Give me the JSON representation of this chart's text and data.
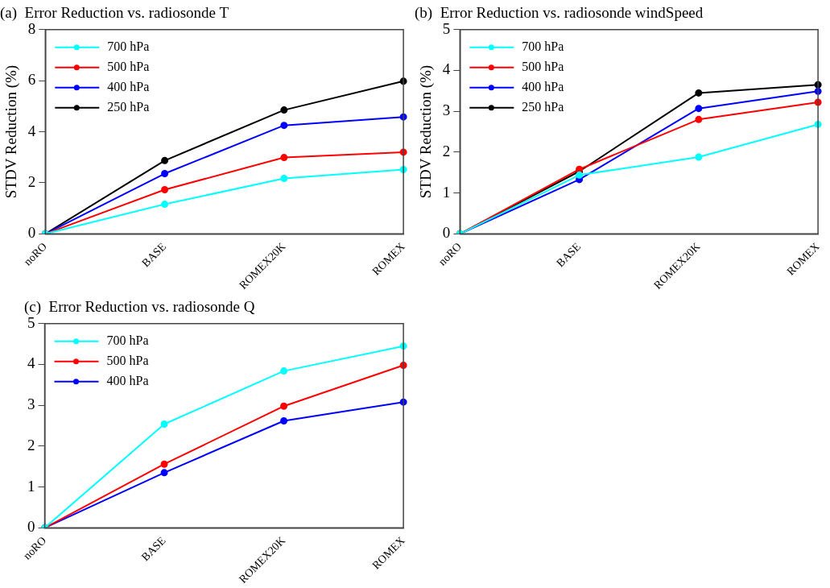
{
  "chart_data": [
    {
      "type": "line",
      "title": "(a)  Error Reduction vs. radiosonde T",
      "ylabel": "STDV Reduction (%)",
      "categories": [
        "noRO",
        "BASE",
        "ROMEX20K",
        "ROMEX"
      ],
      "ylim": [
        0,
        8
      ],
      "yticks": [
        0,
        2,
        4,
        6,
        8
      ],
      "legend": "top left",
      "marker": "circle",
      "grid": false,
      "series": [
        {
          "name": "700 hPa",
          "color": "#00ffff",
          "values": [
            0,
            1.16,
            2.17,
            2.52
          ]
        },
        {
          "name": "500 hPa",
          "color": "#ff0000",
          "values": [
            0,
            1.73,
            2.99,
            3.2
          ]
        },
        {
          "name": "400 hPa",
          "color": "#0000ff",
          "values": [
            0,
            2.36,
            4.25,
            4.58
          ]
        },
        {
          "name": "250 hPa",
          "color": "#000000",
          "values": [
            0,
            2.87,
            4.85,
            5.98
          ]
        }
      ]
    },
    {
      "type": "line",
      "title": "(b)  Error Reduction vs. radiosonde windSpeed",
      "ylabel": "STDV Reduction (%)",
      "categories": [
        "noRO",
        "BASE",
        "ROMEX20K",
        "ROMEX"
      ],
      "ylim": [
        0,
        5
      ],
      "yticks": [
        0,
        1,
        2,
        3,
        4,
        5
      ],
      "legend": "top left",
      "marker": "circle",
      "grid": false,
      "series": [
        {
          "name": "700 hPa",
          "color": "#00ffff",
          "values": [
            0,
            1.44,
            1.88,
            2.68
          ]
        },
        {
          "name": "500 hPa",
          "color": "#ff0000",
          "values": [
            0,
            1.58,
            2.8,
            3.22
          ]
        },
        {
          "name": "400 hPa",
          "color": "#0000ff",
          "values": [
            0,
            1.33,
            3.07,
            3.49
          ]
        },
        {
          "name": "250 hPa",
          "color": "#000000",
          "values": [
            0,
            1.53,
            3.45,
            3.65
          ]
        }
      ]
    },
    {
      "type": "line",
      "title": "(c)  Error Reduction vs. radiosonde Q",
      "categories": [
        "noRO",
        "BASE",
        "ROMEX20K",
        "ROMEX"
      ],
      "ylim": [
        0,
        5
      ],
      "yticks": [
        0,
        1,
        2,
        3,
        4,
        5
      ],
      "legend": "top left",
      "marker": "circle",
      "grid": false,
      "series": [
        {
          "name": "700 hPa",
          "color": "#00ffff",
          "values": [
            0,
            2.54,
            3.84,
            4.45
          ]
        },
        {
          "name": "500 hPa",
          "color": "#ff0000",
          "values": [
            0,
            1.56,
            2.98,
            3.98
          ]
        },
        {
          "name": "400 hPa",
          "color": "#0000ff",
          "values": [
            0,
            1.35,
            2.62,
            3.08
          ]
        }
      ]
    }
  ]
}
